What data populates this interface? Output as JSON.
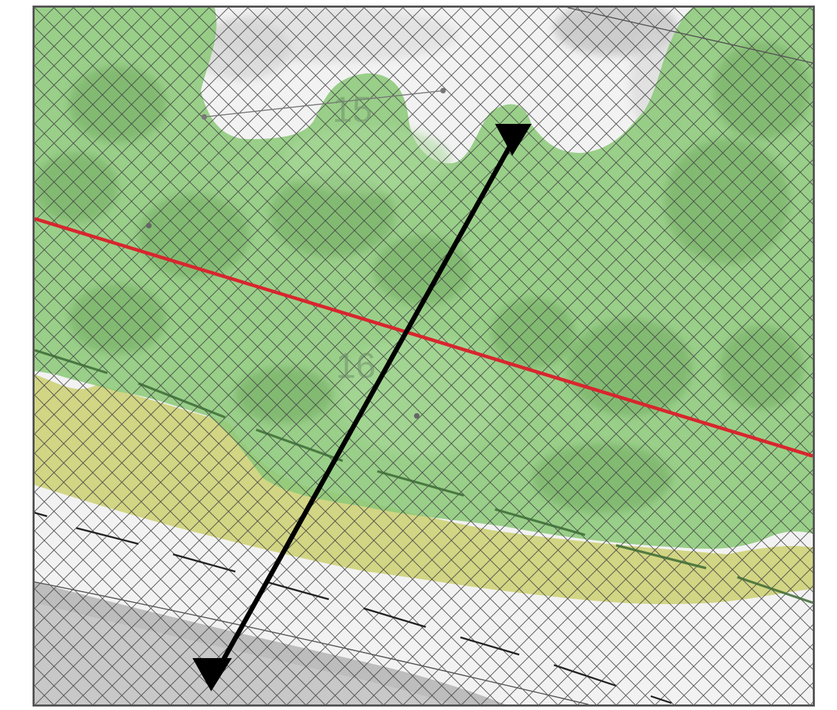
{
  "map": {
    "hole_labels": [
      "15",
      "16"
    ],
    "colors": {
      "background_basemap": "#f2f2f2",
      "beach_sand": "#bdbdbd",
      "green_zone": "#8cc97a",
      "yellow_zone": "#cfd37a",
      "red_line": "#d8262e",
      "arrow": "#000000",
      "hatch": "#444444",
      "dashed_line_in_zone": "#3d6b36",
      "dashed_line_outside": "#222222",
      "frame_border": "#555555"
    },
    "icons": [
      "double-headed-arrow-icon"
    ]
  }
}
